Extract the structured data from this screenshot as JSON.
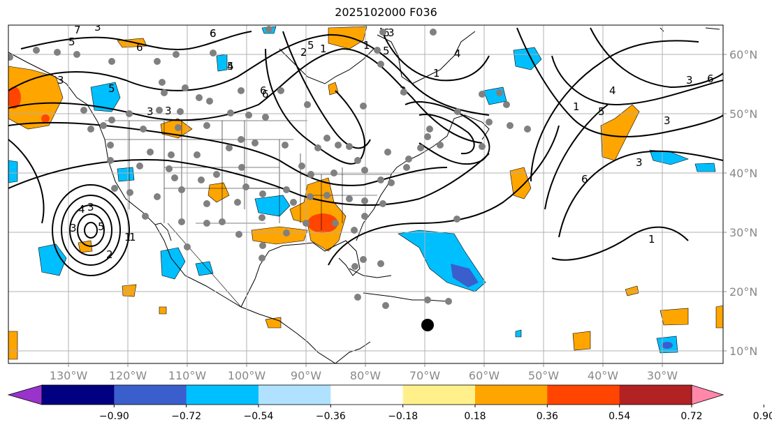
{
  "title": "2025102000 F036",
  "lon_labels": [
    "130°W",
    "120°W",
    "110°W",
    "100°W",
    "90°W",
    "80°W",
    "70°W",
    "60°W",
    "50°W",
    "40°W",
    "30°W"
  ],
  "lat_labels": [
    "60°N",
    "50°N",
    "40°N",
    "30°N",
    "20°N",
    "10°N"
  ],
  "colorbar": {
    "colors": [
      "#9933cc",
      "#000080",
      "#3a5fcd",
      "#00bfff",
      "#b0e2ff",
      "#ffffff",
      "#fff08c",
      "#ffa500",
      "#ff4500",
      "#b22222",
      "#ff88aa"
    ],
    "under_color": "#9933cc",
    "over_color": "#ff88aa",
    "tick_labels": [
      "−0.90",
      "−0.72",
      "−0.54",
      "−0.36",
      "−0.18",
      "0.18",
      "0.36",
      "0.54",
      "0.72",
      "0.90"
    ]
  },
  "contour_labels": [
    "5",
    "3",
    "6",
    "5",
    "3",
    "3",
    "6",
    "7",
    "5",
    "1",
    "2",
    "3",
    "1",
    "4",
    "1",
    "5",
    "3",
    "6",
    "3",
    "5",
    "4",
    "3",
    "3",
    "1",
    "1",
    "6",
    "5",
    "6",
    "3",
    "4",
    "6",
    "4",
    "3",
    "1",
    "6",
    "5",
    "3",
    "1",
    "2",
    "6"
  ],
  "marker": {
    "lon": -70,
    "lat": 15
  }
}
